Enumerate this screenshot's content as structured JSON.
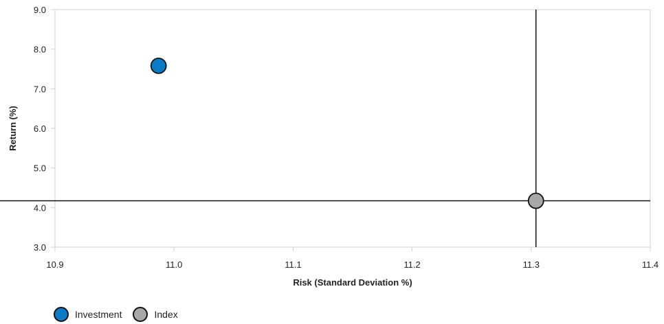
{
  "chart_data": {
    "type": "scatter",
    "title": "",
    "xlabel": "Risk (Standard Deviation %)",
    "ylabel": "Return (%)",
    "xlim": [
      10.9,
      11.4
    ],
    "ylim": [
      3.0,
      9.0
    ],
    "x_ticks": [
      "10.9",
      "11.0",
      "11.1",
      "11.2",
      "11.3",
      "11.4"
    ],
    "y_ticks": [
      "3.0",
      "4.0",
      "5.0",
      "6.0",
      "7.0",
      "8.0",
      "9.0"
    ],
    "grid": false,
    "legend_position": "bottom-left",
    "crosshair_at_series": "Index",
    "series": [
      {
        "name": "Investment",
        "x": 10.987,
        "y": 7.58,
        "color": "#0a7cc7"
      },
      {
        "name": "Index",
        "x": 11.304,
        "y": 4.17,
        "color": "#a8a8a8"
      }
    ]
  }
}
